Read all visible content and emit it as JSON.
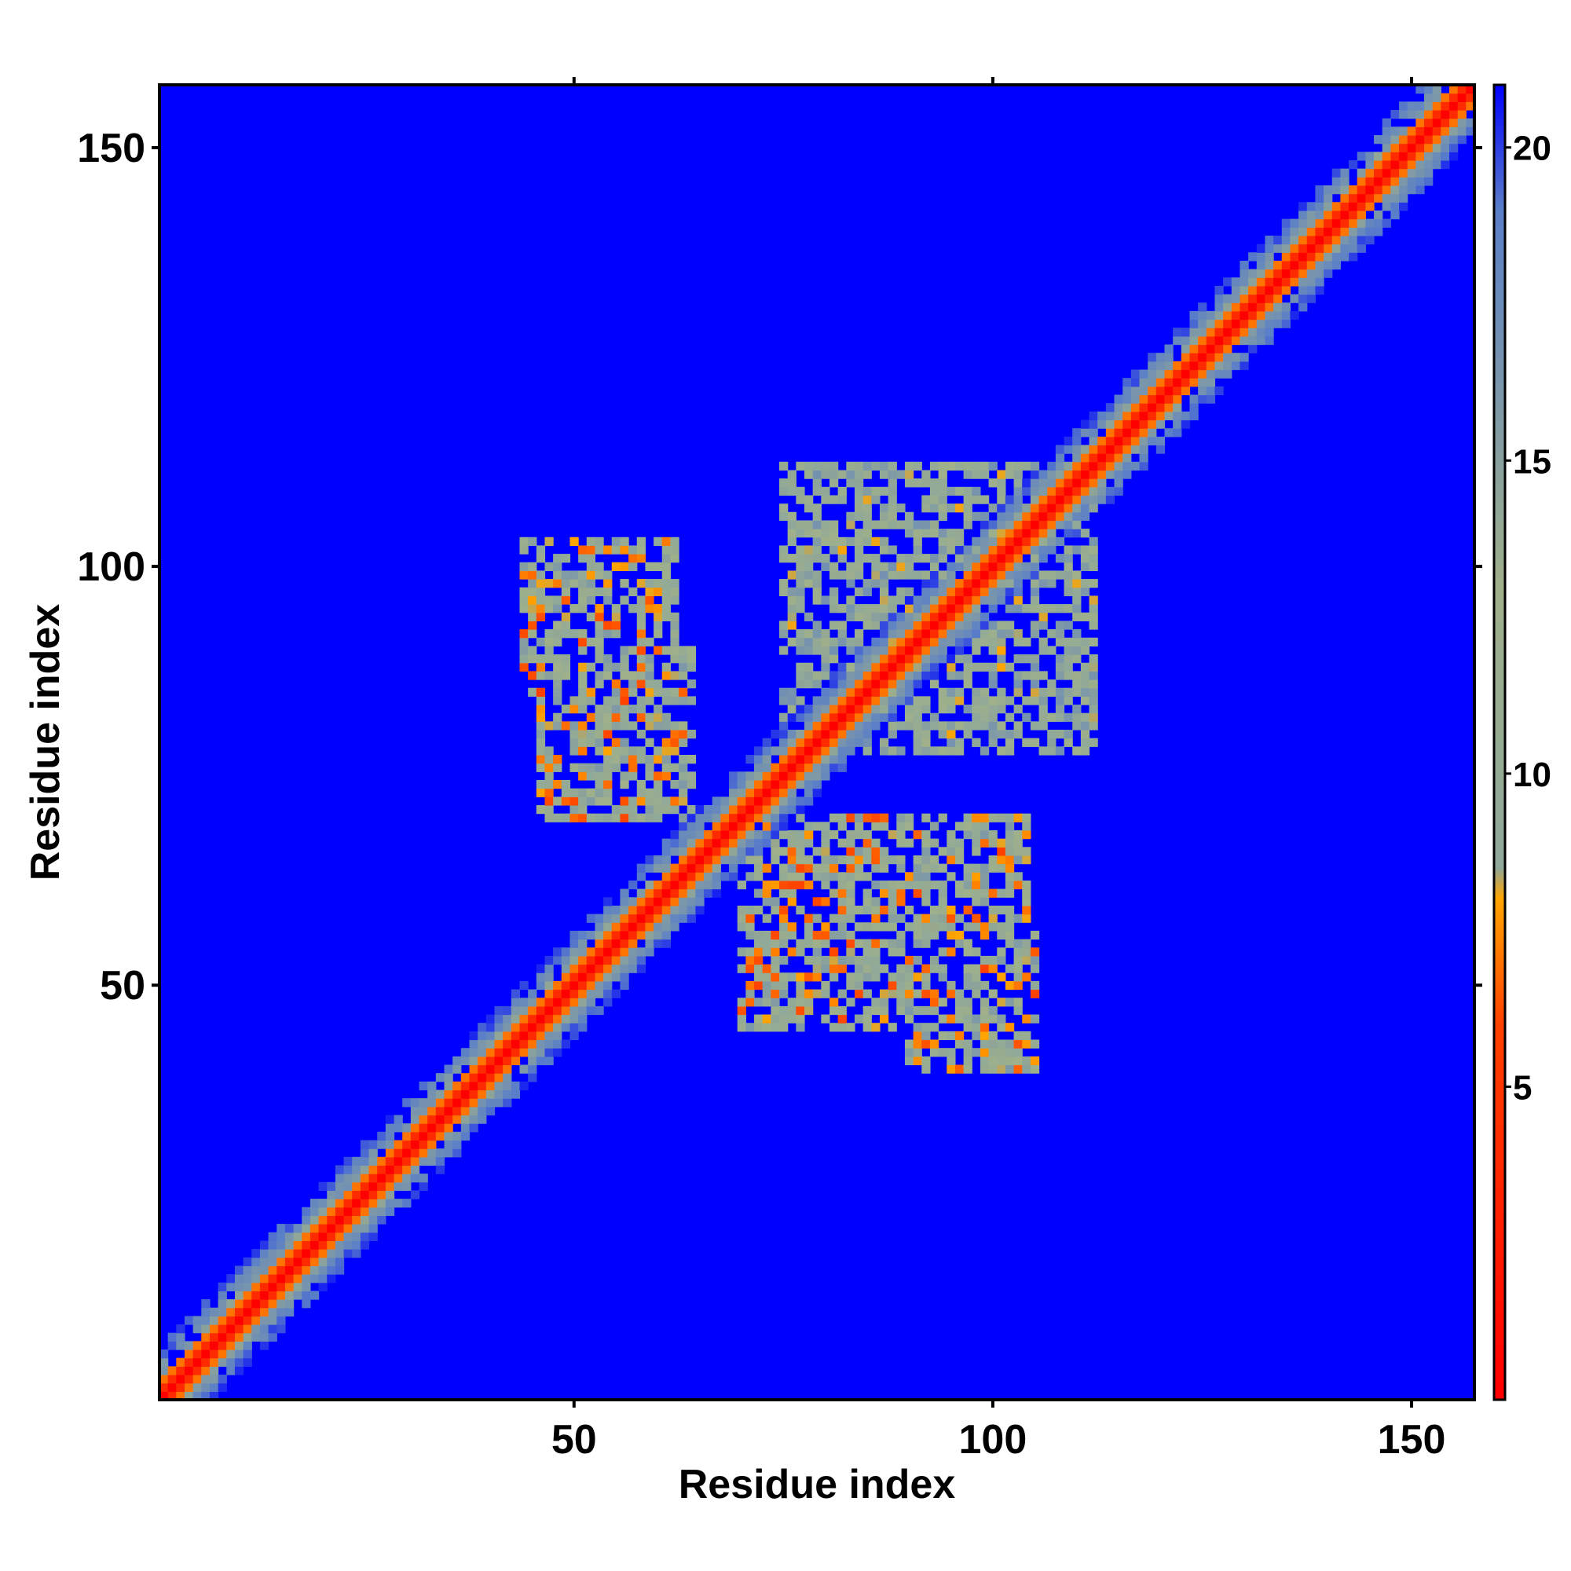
{
  "chart_data": {
    "type": "heatmap",
    "title": "",
    "xlabel": "Residue index",
    "ylabel": "Residue index",
    "n_residues": 157,
    "xlim": [
      1,
      157
    ],
    "ylim": [
      1,
      157
    ],
    "x_ticks": [
      50,
      100,
      150
    ],
    "y_ticks": [
      50,
      100,
      150
    ],
    "x_tick_labels": [
      "50",
      "100",
      "150"
    ],
    "y_tick_labels": [
      "50",
      "100",
      "150"
    ],
    "value_description": "pairwise residue distance",
    "colorbar": {
      "range": [
        0,
        21
      ],
      "ticks": [
        5,
        10,
        15,
        20
      ],
      "tick_labels": [
        "5",
        "10",
        "15",
        "20"
      ],
      "stops": [
        {
          "value": 0,
          "color": "#ff0000"
        },
        {
          "value": 6,
          "color": "#ff4000"
        },
        {
          "value": 8,
          "color": "#ffa500"
        },
        {
          "value": 8.5,
          "color": "#8fa89a"
        },
        {
          "value": 13,
          "color": "#9fb08a"
        },
        {
          "value": 19,
          "color": "#5a7fc8"
        },
        {
          "value": 21,
          "color": "#0000ff"
        }
      ]
    },
    "background_color": "#0000ff",
    "diagonal_band": {
      "description": "near-diagonal residues show small distances (red/orange core, greenish-gray halo)",
      "core_value": 0,
      "halo_width_residues": 6
    },
    "contact_regions": [
      {
        "x_range": [
          44,
          62
        ],
        "y_range": [
          85,
          103
        ],
        "value_range": [
          6,
          16
        ]
      },
      {
        "x_range": [
          46,
          64
        ],
        "y_range": [
          70,
          90
        ],
        "value_range": [
          6,
          16
        ]
      },
      {
        "x_range": [
          70,
          104
        ],
        "y_range": [
          45,
          70
        ],
        "value_range": [
          6,
          16
        ]
      },
      {
        "x_range": [
          90,
          105
        ],
        "y_range": [
          40,
          60
        ],
        "value_range": [
          6,
          16
        ]
      },
      {
        "x_range": [
          75,
          112
        ],
        "y_range": [
          78,
          112
        ],
        "value_range": [
          8,
          17
        ]
      }
    ]
  }
}
